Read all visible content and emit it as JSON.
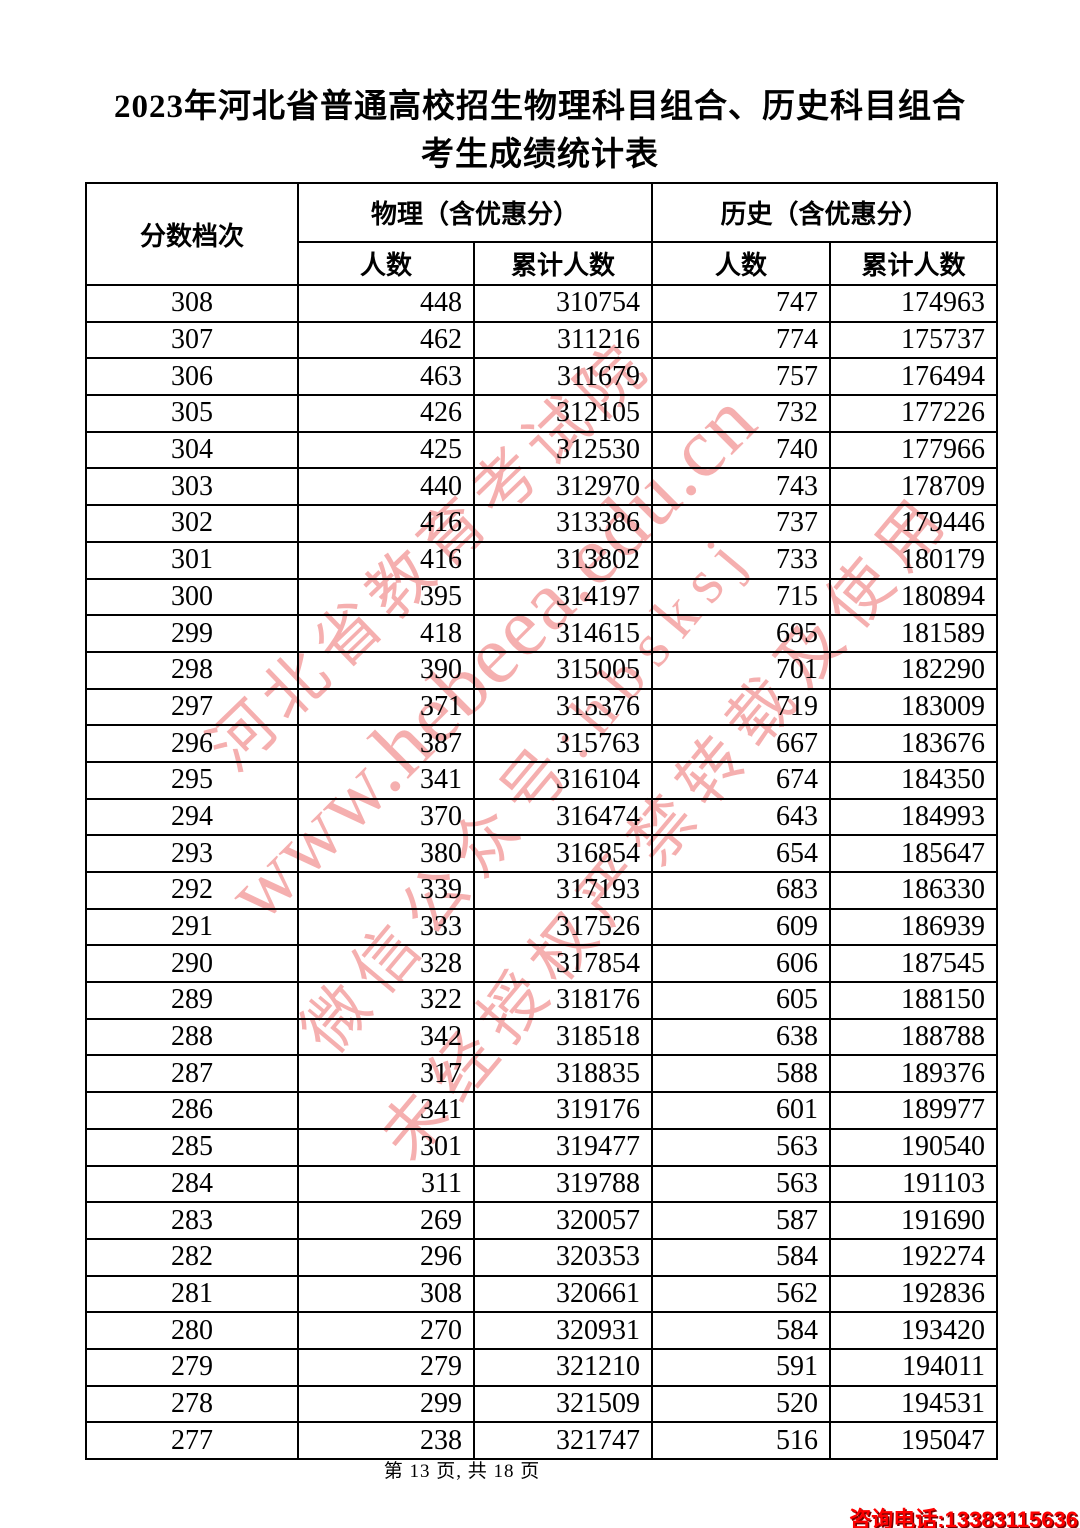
{
  "title": {
    "line1": "2023年河北省普通高校招生物理科目组合、历史科目组合",
    "line2": "考生成绩统计表"
  },
  "table": {
    "header": {
      "score_col": "分数档次",
      "physics_group": "物理（含优惠分）",
      "history_group": "历史（含优惠分）",
      "sub_headers": [
        "人数",
        "累计人数",
        "人数",
        "累计人数"
      ]
    },
    "rows": [
      [
        "308",
        "448",
        "310754",
        "747",
        "174963"
      ],
      [
        "307",
        "462",
        "311216",
        "774",
        "175737"
      ],
      [
        "306",
        "463",
        "311679",
        "757",
        "176494"
      ],
      [
        "305",
        "426",
        "312105",
        "732",
        "177226"
      ],
      [
        "304",
        "425",
        "312530",
        "740",
        "177966"
      ],
      [
        "303",
        "440",
        "312970",
        "743",
        "178709"
      ],
      [
        "302",
        "416",
        "313386",
        "737",
        "179446"
      ],
      [
        "301",
        "416",
        "313802",
        "733",
        "180179"
      ],
      [
        "300",
        "395",
        "314197",
        "715",
        "180894"
      ],
      [
        "299",
        "418",
        "314615",
        "695",
        "181589"
      ],
      [
        "298",
        "390",
        "315005",
        "701",
        "182290"
      ],
      [
        "297",
        "371",
        "315376",
        "719",
        "183009"
      ],
      [
        "296",
        "387",
        "315763",
        "667",
        "183676"
      ],
      [
        "295",
        "341",
        "316104",
        "674",
        "184350"
      ],
      [
        "294",
        "370",
        "316474",
        "643",
        "184993"
      ],
      [
        "293",
        "380",
        "316854",
        "654",
        "185647"
      ],
      [
        "292",
        "339",
        "317193",
        "683",
        "186330"
      ],
      [
        "291",
        "333",
        "317526",
        "609",
        "186939"
      ],
      [
        "290",
        "328",
        "317854",
        "606",
        "187545"
      ],
      [
        "289",
        "322",
        "318176",
        "605",
        "188150"
      ],
      [
        "288",
        "342",
        "318518",
        "638",
        "188788"
      ],
      [
        "287",
        "317",
        "318835",
        "588",
        "189376"
      ],
      [
        "286",
        "341",
        "319176",
        "601",
        "189977"
      ],
      [
        "285",
        "301",
        "319477",
        "563",
        "190540"
      ],
      [
        "284",
        "311",
        "319788",
        "563",
        "191103"
      ],
      [
        "283",
        "269",
        "320057",
        "587",
        "191690"
      ],
      [
        "282",
        "296",
        "320353",
        "584",
        "192274"
      ],
      [
        "281",
        "308",
        "320661",
        "562",
        "192836"
      ],
      [
        "280",
        "270",
        "320931",
        "584",
        "193420"
      ],
      [
        "279",
        "279",
        "321210",
        "591",
        "194011"
      ],
      [
        "278",
        "299",
        "321509",
        "520",
        "194531"
      ],
      [
        "277",
        "238",
        "321747",
        "516",
        "195047"
      ]
    ]
  },
  "watermark": {
    "color": "#ee6e6e",
    "lines": [
      "河北省教育考试院",
      "www.hebeea.edu.cn",
      "微信公众号:hbsksj",
      "未经授权严禁转载及使用"
    ]
  },
  "footer": {
    "page_info": "第 13 页, 共 18 页",
    "phone": "咨询电话:13383115636",
    "phone_color": "#ff0000"
  }
}
